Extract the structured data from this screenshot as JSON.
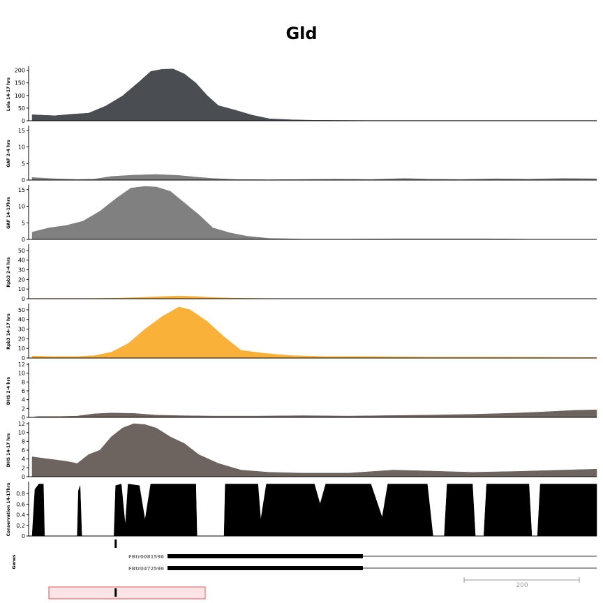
{
  "title": "Gld",
  "chart_data": {
    "type": "area",
    "x_range": [
      0,
      1000
    ],
    "tracks": [
      {
        "label": "Lola 14-17 hrs",
        "color": "#4a4e52",
        "ylim": [
          0,
          210
        ],
        "yticks": [
          0,
          50,
          100,
          150,
          200
        ],
        "points": [
          [
            0,
            24
          ],
          [
            40,
            20
          ],
          [
            70,
            26
          ],
          [
            100,
            30
          ],
          [
            130,
            58
          ],
          [
            160,
            98
          ],
          [
            190,
            155
          ],
          [
            210,
            195
          ],
          [
            230,
            204
          ],
          [
            250,
            205
          ],
          [
            270,
            185
          ],
          [
            290,
            150
          ],
          [
            310,
            100
          ],
          [
            330,
            60
          ],
          [
            360,
            42
          ],
          [
            390,
            22
          ],
          [
            420,
            8
          ],
          [
            460,
            4
          ],
          [
            500,
            2
          ],
          [
            600,
            1
          ],
          [
            700,
            1
          ],
          [
            800,
            1
          ],
          [
            900,
            1
          ],
          [
            1000,
            1
          ]
        ]
      },
      {
        "label": "GAF 2-4 hrs",
        "color": "#808080",
        "ylim": [
          0,
          16
        ],
        "yticks": [
          0,
          5,
          10,
          15
        ],
        "points": [
          [
            0,
            0.8
          ],
          [
            40,
            0.4
          ],
          [
            80,
            0.2
          ],
          [
            110,
            0.3
          ],
          [
            140,
            1.1
          ],
          [
            180,
            1.5
          ],
          [
            220,
            1.7
          ],
          [
            260,
            1.4
          ],
          [
            290,
            0.9
          ],
          [
            320,
            0.5
          ],
          [
            360,
            0.2
          ],
          [
            420,
            0.1
          ],
          [
            480,
            0.2
          ],
          [
            540,
            0.3
          ],
          [
            600,
            0.2
          ],
          [
            660,
            0.5
          ],
          [
            700,
            0.3
          ],
          [
            760,
            0.2
          ],
          [
            820,
            0.4
          ],
          [
            880,
            0.3
          ],
          [
            940,
            0.5
          ],
          [
            1000,
            0.4
          ]
        ]
      },
      {
        "label": "GAF 14-17hrs",
        "color": "#808080",
        "ylim": [
          0,
          16
        ],
        "yticks": [
          0,
          5,
          10,
          15
        ],
        "points": [
          [
            0,
            2.2
          ],
          [
            30,
            3.5
          ],
          [
            60,
            4.2
          ],
          [
            90,
            5.5
          ],
          [
            120,
            8.5
          ],
          [
            150,
            12.5
          ],
          [
            175,
            15.5
          ],
          [
            200,
            16
          ],
          [
            220,
            15.8
          ],
          [
            245,
            14.5
          ],
          [
            270,
            11
          ],
          [
            295,
            7.5
          ],
          [
            320,
            3.5
          ],
          [
            350,
            2
          ],
          [
            380,
            1
          ],
          [
            420,
            0.3
          ],
          [
            480,
            0.1
          ],
          [
            560,
            0.1
          ],
          [
            640,
            0.2
          ],
          [
            720,
            0.2
          ],
          [
            800,
            0.2
          ],
          [
            860,
            0.1
          ],
          [
            900,
            0
          ],
          [
            1000,
            0
          ]
        ]
      },
      {
        "label": "Rpb3 2-4 hrs",
        "color": "#fab13a",
        "ylim": [
          0,
          55
        ],
        "yticks": [
          0,
          10,
          20,
          30,
          40,
          50
        ],
        "points": [
          [
            0,
            0.3
          ],
          [
            100,
            0.3
          ],
          [
            150,
            0.6
          ],
          [
            200,
            1.5
          ],
          [
            230,
            2.3
          ],
          [
            260,
            2.8
          ],
          [
            290,
            2.3
          ],
          [
            320,
            1.3
          ],
          [
            360,
            0.6
          ],
          [
            420,
            0.2
          ],
          [
            500,
            0.1
          ],
          [
            600,
            0.1
          ],
          [
            700,
            0.1
          ],
          [
            800,
            0.1
          ],
          [
            900,
            0.1
          ],
          [
            1000,
            0.1
          ]
        ]
      },
      {
        "label": "Rpb3 14-17 hrs",
        "color": "#fab13a",
        "ylim": [
          0,
          55
        ],
        "yticks": [
          0,
          10,
          20,
          30,
          40,
          50
        ],
        "points": [
          [
            0,
            2
          ],
          [
            40,
            1.5
          ],
          [
            80,
            1.5
          ],
          [
            110,
            2.5
          ],
          [
            140,
            6
          ],
          [
            170,
            15
          ],
          [
            200,
            30
          ],
          [
            230,
            43
          ],
          [
            260,
            53
          ],
          [
            280,
            50
          ],
          [
            310,
            38
          ],
          [
            340,
            22
          ],
          [
            370,
            8
          ],
          [
            410,
            5
          ],
          [
            460,
            2.5
          ],
          [
            520,
            1.5
          ],
          [
            600,
            1.5
          ],
          [
            700,
            1
          ],
          [
            800,
            1
          ],
          [
            900,
            0.8
          ],
          [
            1000,
            0.5
          ]
        ]
      },
      {
        "label": "DHS 2-4 hrs",
        "color": "#6e645f",
        "ylim": [
          0,
          12
        ],
        "yticks": [
          0,
          2,
          4,
          6,
          8,
          10,
          12
        ],
        "points": [
          [
            0,
            0
          ],
          [
            10,
            0.2
          ],
          [
            50,
            0.2
          ],
          [
            80,
            0.3
          ],
          [
            110,
            0.8
          ],
          [
            140,
            1
          ],
          [
            180,
            0.9
          ],
          [
            220,
            0.5
          ],
          [
            260,
            0.4
          ],
          [
            320,
            0.3
          ],
          [
            400,
            0.3
          ],
          [
            480,
            0.4
          ],
          [
            560,
            0.3
          ],
          [
            620,
            0.4
          ],
          [
            700,
            0.5
          ],
          [
            780,
            0.7
          ],
          [
            840,
            0.9
          ],
          [
            900,
            1.2
          ],
          [
            960,
            1.6
          ],
          [
            1000,
            1.7
          ]
        ]
      },
      {
        "label": "DHS 14-17 hrs",
        "color": "#6e645f",
        "ylim": [
          0,
          12
        ],
        "yticks": [
          0,
          2,
          4,
          6,
          8,
          10,
          12
        ],
        "points": [
          [
            0,
            4.5
          ],
          [
            30,
            4
          ],
          [
            60,
            3.5
          ],
          [
            80,
            3
          ],
          [
            100,
            5
          ],
          [
            120,
            6
          ],
          [
            140,
            9
          ],
          [
            160,
            11
          ],
          [
            180,
            12
          ],
          [
            200,
            11.8
          ],
          [
            220,
            11
          ],
          [
            245,
            9
          ],
          [
            270,
            7.5
          ],
          [
            295,
            5
          ],
          [
            330,
            3
          ],
          [
            370,
            1.5
          ],
          [
            420,
            1
          ],
          [
            480,
            0.8
          ],
          [
            560,
            0.8
          ],
          [
            640,
            1.5
          ],
          [
            700,
            1.3
          ],
          [
            780,
            1
          ],
          [
            860,
            1.2
          ],
          [
            940,
            1.5
          ],
          [
            1000,
            1.7
          ]
        ]
      },
      {
        "label": "Conservation 14-17hrs",
        "color": "#000000",
        "ylim": [
          0,
          1
        ],
        "yticks": [
          0,
          0.2,
          0.4,
          0.6,
          0.8
        ],
        "points": [
          [
            0,
            0
          ],
          [
            5,
            0.88
          ],
          [
            12,
            0.98
          ],
          [
            20,
            0.98
          ],
          [
            22,
            0
          ],
          [
            80,
            0
          ],
          [
            82,
            0.85
          ],
          [
            85,
            0.95
          ],
          [
            88,
            0
          ],
          [
            145,
            0
          ],
          [
            148,
            0.95
          ],
          [
            158,
            0.98
          ],
          [
            165,
            0.2
          ],
          [
            170,
            0.98
          ],
          [
            190,
            0.95
          ],
          [
            200,
            0.3
          ],
          [
            210,
            0.98
          ],
          [
            290,
            0.98
          ],
          [
            292,
            0
          ],
          [
            340,
            0
          ],
          [
            342,
            0.98
          ],
          [
            400,
            0.98
          ],
          [
            405,
            0.3
          ],
          [
            415,
            0.98
          ],
          [
            500,
            0.98
          ],
          [
            510,
            0.6
          ],
          [
            520,
            0.98
          ],
          [
            600,
            0.98
          ],
          [
            620,
            0.35
          ],
          [
            630,
            0.98
          ],
          [
            700,
            0.98
          ],
          [
            710,
            0
          ],
          [
            730,
            0
          ],
          [
            735,
            0.98
          ],
          [
            780,
            0.98
          ],
          [
            785,
            0
          ],
          [
            800,
            0
          ],
          [
            805,
            0.98
          ],
          [
            880,
            0.98
          ],
          [
            885,
            0
          ],
          [
            895,
            0
          ],
          [
            900,
            0.98
          ],
          [
            1000,
            0.98
          ]
        ]
      }
    ],
    "genes": {
      "label": "Genes",
      "transcripts": [
        {
          "name": "FBtr0081596",
          "thick": [
            240,
            520
          ],
          "line": [
            520,
            855
          ]
        },
        {
          "name": "FBtr0472596",
          "thick": [
            240,
            520
          ],
          "line": [
            520,
            855
          ]
        }
      ],
      "marker_x": 148
    },
    "scale_bar": {
      "label": "200"
    },
    "highlight": {
      "marker_x": 148
    }
  }
}
